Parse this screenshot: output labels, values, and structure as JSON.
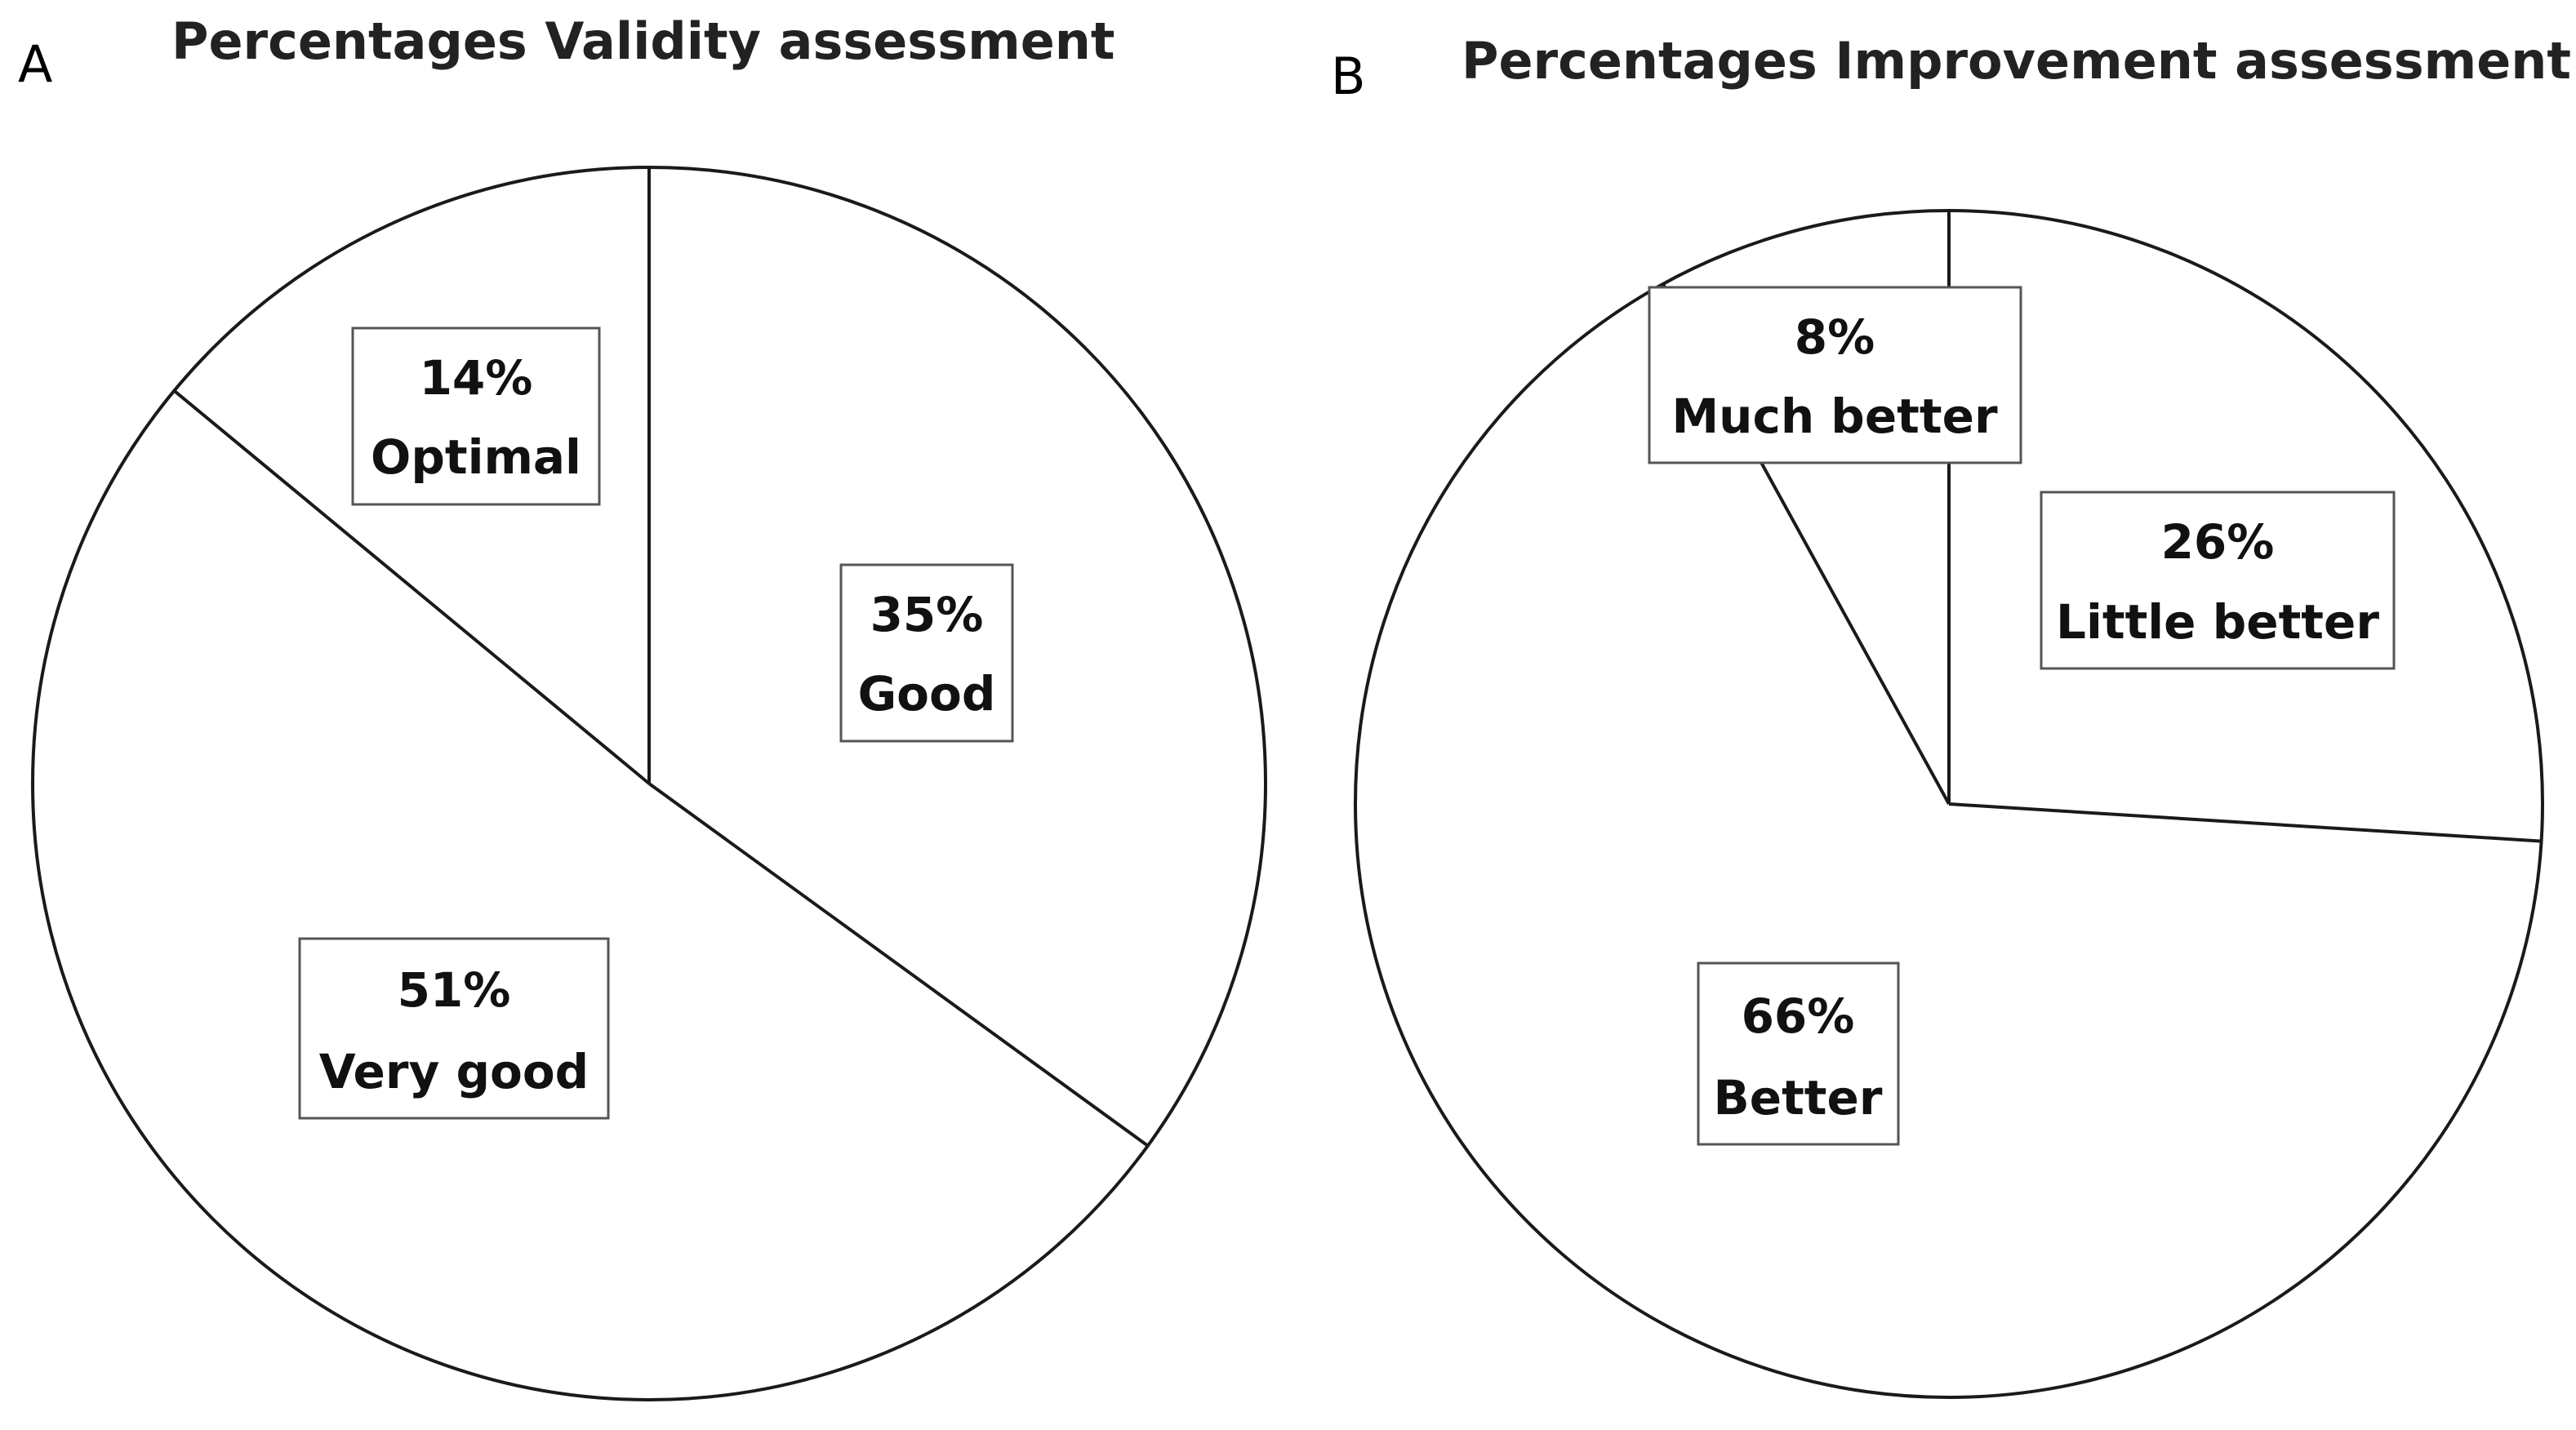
{
  "chart_data": [
    {
      "panel": "A",
      "type": "pie",
      "title": "Percentages Validity assessment",
      "slices": [
        {
          "label": "Good",
          "value": 35,
          "display": "35%"
        },
        {
          "label": "Very good",
          "value": 51,
          "display": "51%"
        },
        {
          "label": "Optimal",
          "value": 14,
          "display": "14%"
        }
      ]
    },
    {
      "panel": "B",
      "type": "pie",
      "title": "Percentages Improvement assessment",
      "slices": [
        {
          "label": "Little better",
          "value": 26,
          "display": "26%"
        },
        {
          "label": "Better",
          "value": 66,
          "display": "66%"
        },
        {
          "label": "Much better",
          "value": 8,
          "display": "8%"
        }
      ]
    }
  ]
}
